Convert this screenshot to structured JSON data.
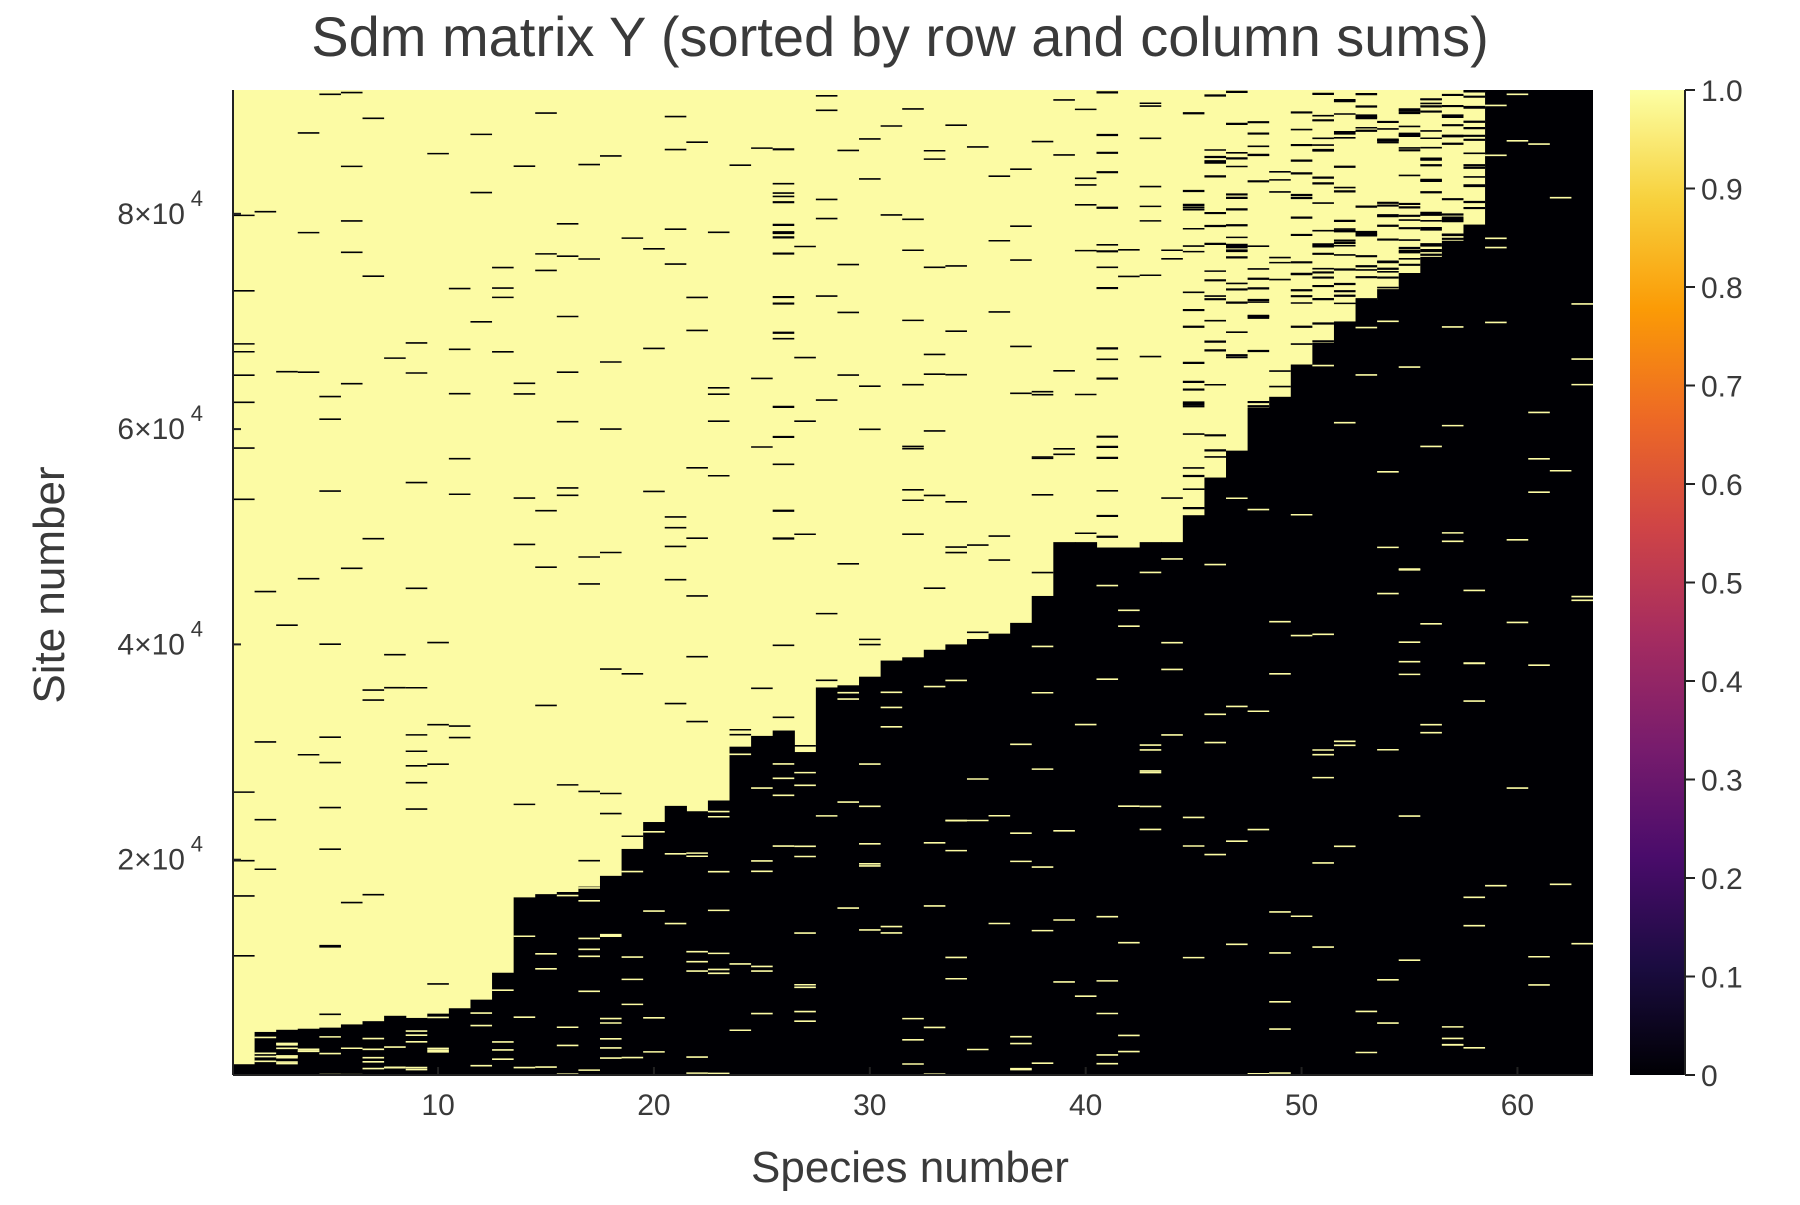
{
  "chart_data": {
    "type": "heatmap",
    "title": "Sdm matrix Y (sorted by row and column sums)",
    "xlabel": "Species number",
    "ylabel": "Site number",
    "xlim": [
      0.5,
      63.5
    ],
    "ylim": [
      0,
      91500
    ],
    "x_ticks": [
      {
        "value": 10,
        "label": "10"
      },
      {
        "value": 20,
        "label": "20"
      },
      {
        "value": 30,
        "label": "30"
      },
      {
        "value": 40,
        "label": "40"
      },
      {
        "value": 50,
        "label": "50"
      },
      {
        "value": 60,
        "label": "60"
      }
    ],
    "y_ticks": [
      {
        "value": 20000,
        "mantissa": "2×10",
        "exponent": "4"
      },
      {
        "value": 40000,
        "mantissa": "4×10",
        "exponent": "4"
      },
      {
        "value": 60000,
        "mantissa": "6×10",
        "exponent": "4"
      },
      {
        "value": 80000,
        "mantissa": "8×10",
        "exponent": "4"
      }
    ],
    "colorbar": {
      "colormap": "inferno",
      "range": [
        0,
        1
      ],
      "ticks": [
        "0",
        "0.1",
        "0.2",
        "0.3",
        "0.4",
        "0.5",
        "0.6",
        "0.7",
        "0.8",
        "0.9",
        "1.0"
      ],
      "stops": [
        "#000004",
        "#1b0c41",
        "#4a0c6b",
        "#781c6d",
        "#a52c60",
        "#cf4446",
        "#ed6925",
        "#fb9b06",
        "#f7d13d",
        "#fcffa4"
      ]
    },
    "values_present": 1,
    "values_absent": 0,
    "color_present": "#fcfba4",
    "color_absent": "#000004",
    "species_count": 63,
    "presence_boundary_site_number": [
      1000,
      4000,
      4200,
      4300,
      4400,
      4700,
      5000,
      5500,
      5300,
      5700,
      6200,
      7000,
      9500,
      16500,
      16800,
      17000,
      17500,
      18500,
      21000,
      23500,
      25000,
      24500,
      25500,
      30500,
      31500,
      32000,
      30000,
      36000,
      36200,
      37000,
      38500,
      38800,
      39500,
      40000,
      40500,
      41000,
      42000,
      44500,
      49500,
      49500,
      49000,
      49000,
      49500,
      49500,
      52000,
      55500,
      58000,
      62000,
      63000,
      66000,
      68000,
      70000,
      72000,
      73000,
      74500,
      76000,
      77500,
      79000,
      91500,
      91500,
      91500,
      91500,
      91500
    ],
    "absent_streak_columns": [
      26,
      41,
      45,
      46,
      47,
      48,
      50,
      51,
      52,
      53,
      54,
      55,
      56,
      57,
      58
    ]
  }
}
